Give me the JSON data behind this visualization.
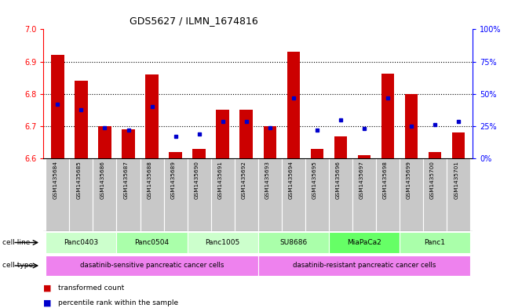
{
  "title": "GDS5627 / ILMN_1674816",
  "samples": [
    "GSM1435684",
    "GSM1435685",
    "GSM1435686",
    "GSM1435687",
    "GSM1435688",
    "GSM1435689",
    "GSM1435690",
    "GSM1435691",
    "GSM1435692",
    "GSM1435693",
    "GSM1435694",
    "GSM1435695",
    "GSM1435696",
    "GSM1435697",
    "GSM1435698",
    "GSM1435699",
    "GSM1435700",
    "GSM1435701"
  ],
  "red_values": [
    6.922,
    6.84,
    6.7,
    6.69,
    6.86,
    6.62,
    6.63,
    6.75,
    6.75,
    6.7,
    6.93,
    6.63,
    6.668,
    6.61,
    6.862,
    6.8,
    6.62,
    6.68
  ],
  "blue_percentiles": [
    42,
    38,
    24,
    22,
    40,
    17,
    19,
    29,
    29,
    24,
    47,
    22,
    30,
    23,
    47,
    25,
    26,
    29
  ],
  "ylim_left": [
    6.6,
    7.0
  ],
  "ylim_right": [
    0,
    100
  ],
  "yticks_left": [
    6.6,
    6.7,
    6.8,
    6.9,
    7.0
  ],
  "yticks_right": [
    0,
    25,
    50,
    75,
    100
  ],
  "ytick_labels_right": [
    "0%",
    "25%",
    "50%",
    "75%",
    "100%"
  ],
  "cell_lines": [
    {
      "name": "Panc0403",
      "start": 0,
      "end": 2,
      "color": "#ccffcc"
    },
    {
      "name": "Panc0504",
      "start": 3,
      "end": 5,
      "color": "#aaffaa"
    },
    {
      "name": "Panc1005",
      "start": 6,
      "end": 8,
      "color": "#ccffcc"
    },
    {
      "name": "SU8686",
      "start": 9,
      "end": 11,
      "color": "#aaffaa"
    },
    {
      "name": "MiaPaCa2",
      "start": 12,
      "end": 14,
      "color": "#66ff66"
    },
    {
      "name": "Panc1",
      "start": 15,
      "end": 17,
      "color": "#aaffaa"
    }
  ],
  "cell_type_sensitive": "dasatinib-sensitive pancreatic cancer cells",
  "cell_type_resistant": "dasatinib-resistant pancreatic cancer cells",
  "cell_type_color": "#ee82ee",
  "bar_color": "#cc0000",
  "dot_color": "#0000cc",
  "baseline": 6.6,
  "background_color": "#ffffff",
  "sample_bg_color": "#c8c8c8",
  "legend_red": "transformed count",
  "legend_blue": "percentile rank within the sample"
}
